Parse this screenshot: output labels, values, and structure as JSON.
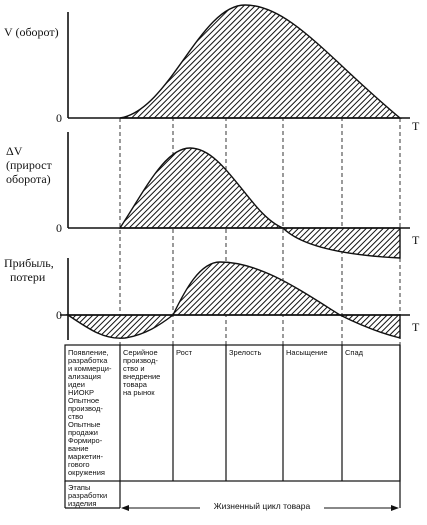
{
  "panels": [
    {
      "label": [
        "V (оборот)"
      ],
      "zero": "0",
      "axis_end": "T"
    },
    {
      "label": [
        "ΔV",
        "(прирост",
        "оборота)"
      ],
      "zero": "0",
      "axis_end": "T"
    },
    {
      "label": [
        "Прибыль,",
        "потери"
      ],
      "zero": "0",
      "axis_end": "T"
    }
  ],
  "stages": [
    [
      "Появление,",
      "разработка",
      "и коммерци-",
      "ализация",
      "идеи",
      "НИОКР",
      "Опытное",
      "производ-",
      "ство",
      "Опытные",
      "продажи",
      "Формиро-",
      "вание",
      "маркетин-",
      "гового",
      "окружения"
    ],
    [
      "Серийное",
      "производ-",
      "ство и",
      "внедрение",
      "товара",
      "на рынок"
    ],
    [
      "Рост"
    ],
    [
      "Зрелость"
    ],
    [
      "Насыщение"
    ],
    [
      "Спад"
    ]
  ],
  "footer": {
    "development": [
      "Этапы",
      "разработки",
      "изделия"
    ],
    "life_cycle": "Жизненный цикл товара"
  }
}
